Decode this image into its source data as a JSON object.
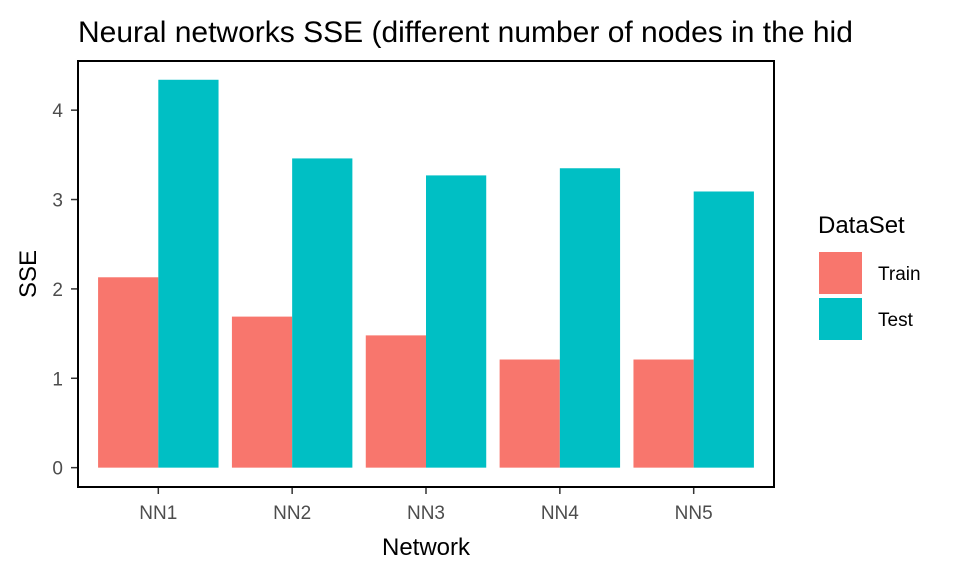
{
  "chart_data": {
    "type": "bar",
    "title": "Neural networks SSE (different number of nodes in the hid",
    "xlabel": "Network",
    "ylabel": "SSE",
    "categories": [
      "NN1",
      "NN2",
      "NN3",
      "NN4",
      "NN5"
    ],
    "series": [
      {
        "name": "Train",
        "color": "#f8766d",
        "values": [
          2.13,
          1.69,
          1.48,
          1.21,
          1.21
        ]
      },
      {
        "name": "Test",
        "color": "#00bfc4",
        "values": [
          4.34,
          3.46,
          3.27,
          3.35,
          3.09
        ]
      }
    ],
    "ylim": [
      -0.2165,
      4.55
    ],
    "yticks": [
      0,
      1,
      2,
      3,
      4
    ],
    "legend": {
      "title": "DataSet",
      "position": "right"
    },
    "grid": false
  }
}
